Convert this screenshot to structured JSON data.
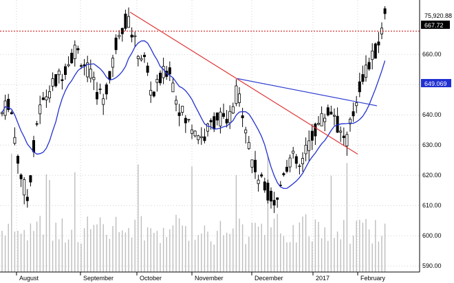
{
  "chart_data": {
    "type": "candlestick",
    "y_axis": {
      "ticks": [
        590,
        600,
        610,
        620,
        630,
        640,
        650,
        660
      ],
      "ylim": [
        588,
        678
      ],
      "tick_labels": [
        "590.00",
        "600.00",
        "610.00",
        "620.00",
        "630.00",
        "640.00",
        "650.00",
        "660.00"
      ],
      "position": "right"
    },
    "x_axis": {
      "month_labels": [
        "August",
        "September",
        "October",
        "November",
        "December",
        "2017",
        "February"
      ]
    },
    "value_labels": {
      "last_volume": "75,920.88",
      "last_close": "667.72",
      "moving_average": "649.069"
    },
    "reference_level": 667.72,
    "moving_average_end": 649.069,
    "grid": true,
    "trendlines": [
      {
        "color": "#e03030",
        "from": [
          "early October",
          674
        ],
        "to": [
          "late January",
          627
        ]
      },
      {
        "color": "#3040d0",
        "from": [
          "mid November",
          652
        ],
        "to": [
          "late January",
          643
        ]
      }
    ],
    "colors": {
      "candle": "#000000",
      "moving_average": "#2030d0",
      "reference_line": "#cc0000",
      "volume": "#bcbcbc",
      "red_trendline": "#e03030",
      "blue_trendline": "#3040d0"
    }
  }
}
